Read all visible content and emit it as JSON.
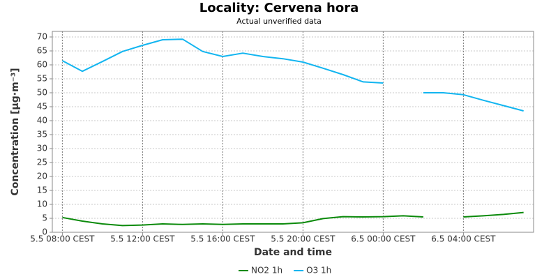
{
  "chart_data": {
    "type": "line",
    "title": "Locality: Cervena hora",
    "subtitle": "Actual unverified data",
    "x_label": "Date and time",
    "y_label": "Concentration [µg·m⁻³]",
    "categories": [
      "5.5 08:00 CEST",
      null,
      null,
      null,
      "5.5 12:00 CEST",
      null,
      null,
      null,
      "5.5 16:00 CEST",
      null,
      null,
      null,
      "5.5 20:00 CEST",
      null,
      null,
      null,
      "6.5 00:00 CEST",
      null,
      null,
      null,
      "6.5 04:00 CEST",
      null,
      null,
      null
    ],
    "series": [
      {
        "name": "NO2 1h",
        "color": "#0b8a0b",
        "values": [
          5.3,
          4,
          3,
          2.4,
          2.6,
          3,
          2.8,
          3,
          2.8,
          3,
          3,
          3,
          3.4,
          4.9,
          5.6,
          5.5,
          5.6,
          5.9,
          5.5,
          null,
          5.5,
          5.9,
          6.4,
          7.1
        ]
      },
      {
        "name": "O3 1h",
        "color": "#12b5f0",
        "values": [
          61.5,
          57.7,
          61.2,
          64.8,
          67,
          69,
          69.2,
          64.8,
          63,
          64.2,
          63,
          62.2,
          61,
          58.8,
          56.5,
          53.9,
          53.5,
          null,
          50,
          50,
          49.3,
          47.3,
          45.4,
          43.5
        ]
      }
    ],
    "ylim": [
      0,
      72
    ],
    "yticks": [
      0,
      5,
      10,
      15,
      20,
      25,
      30,
      35,
      40,
      45,
      50,
      55,
      60,
      65,
      70
    ],
    "grid": true
  }
}
